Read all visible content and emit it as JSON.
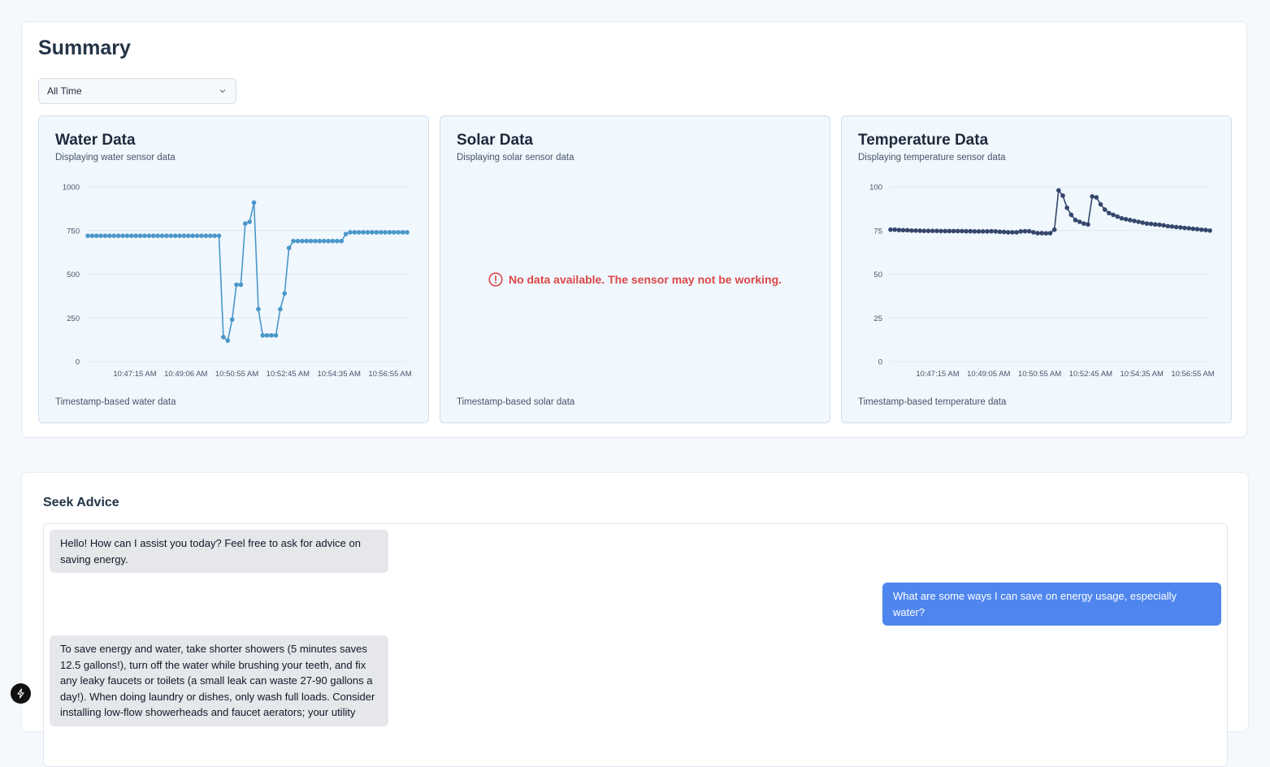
{
  "summary": {
    "title": "Summary",
    "range_select": {
      "value": "All Time"
    }
  },
  "panels": {
    "water": {
      "title": "Water Data",
      "description": "Displaying water sensor data",
      "footer": "Timestamp-based water data"
    },
    "solar": {
      "title": "Solar Data",
      "description": "Displaying solar sensor data",
      "footer": "Timestamp-based solar data",
      "no_data_message": "No data available. The sensor may not be working."
    },
    "temperature": {
      "title": "Temperature Data",
      "description": "Displaying temperature sensor data",
      "footer": "Timestamp-based temperature data"
    }
  },
  "chart_data": [
    {
      "type": "line",
      "ylim": [
        0,
        1000
      ],
      "y_ticks": [
        "0",
        "250",
        "500",
        "750",
        "1000"
      ],
      "x_tick_labels": [
        "10:47:15 AM",
        "10:49:06 AM",
        "10:50:55 AM",
        "10:52:45 AM",
        "10:54:35 AM",
        "10:56:55 AM"
      ],
      "grid": true,
      "color": "#4a97c9",
      "series": [
        {
          "values": [
            720,
            720,
            720,
            720,
            720,
            720,
            720,
            720,
            720,
            720,
            720,
            720,
            720,
            720,
            720,
            720,
            720,
            720,
            720,
            720,
            720,
            720,
            720,
            720,
            720,
            720,
            720,
            720,
            720,
            720,
            720,
            140,
            120,
            240,
            440,
            440,
            790,
            800,
            910,
            300,
            150,
            150,
            150,
            150,
            300,
            390,
            650,
            690,
            690,
            690,
            690,
            690,
            690,
            690,
            690,
            690,
            690,
            690,
            690,
            730,
            740,
            740,
            740,
            740,
            740,
            740,
            740,
            740,
            740,
            740,
            740,
            740,
            740,
            740
          ]
        }
      ]
    },
    {
      "type": "line",
      "ylim": [
        0,
        100
      ],
      "y_ticks": [
        "0",
        "25",
        "50",
        "75",
        "100"
      ],
      "x_tick_labels": [
        "10:47:15 AM",
        "10:49:05 AM",
        "10:50:55 AM",
        "10:52:45 AM",
        "10:54:35 AM",
        "10:56:55 AM"
      ],
      "grid": true,
      "color": "#34466b",
      "series": [
        {
          "values": [
            75.5,
            75.5,
            75.3,
            75.2,
            75.2,
            75.0,
            75.0,
            74.9,
            74.8,
            74.8,
            74.8,
            74.8,
            74.7,
            74.7,
            74.7,
            74.7,
            74.7,
            74.7,
            74.6,
            74.6,
            74.5,
            74.5,
            74.5,
            74.5,
            74.6,
            74.5,
            74.3,
            74.2,
            74.0,
            74.0,
            74.0,
            74.5,
            74.6,
            74.6,
            74.0,
            73.5,
            73.5,
            73.4,
            73.5,
            75.5,
            98.0,
            95.0,
            88.0,
            84.0,
            81.0,
            80.0,
            79.0,
            78.5,
            94.5,
            94.0,
            90.0,
            87.0,
            85.0,
            84.0,
            83.0,
            82.0,
            81.5,
            81.0,
            80.5,
            80.0,
            79.5,
            79.0,
            78.8,
            78.5,
            78.3,
            78.0,
            77.5,
            77.3,
            77.0,
            76.8,
            76.5,
            76.3,
            76.0,
            75.8,
            75.5,
            75.3,
            75.0
          ]
        }
      ]
    }
  ],
  "advice": {
    "title": "Seek Advice",
    "messages": [
      {
        "role": "bot",
        "text": "Hello! How can I assist you today? Feel free to ask for advice on saving energy."
      },
      {
        "role": "user",
        "text": "What are some ways I can save on energy usage, especially water?"
      },
      {
        "role": "bot",
        "text": "To save energy and water, take shorter showers (5 minutes saves 12.5 gallons!), turn off the water while brushing your teeth, and fix any leaky faucets or toilets (a small leak can waste 27-90 gallons a day!). When doing laundry or dishes, only wash full loads. Consider installing low-flow showerheads and faucet aerators; your utility"
      }
    ]
  },
  "colors": {
    "water_line": "#4a97c9",
    "temperature_line": "#34466b",
    "error": "#dc4747",
    "user_bubble": "#4f86ee",
    "bot_bubble": "#e5e7eb"
  },
  "icons": {
    "dropdown": "chevron-down-icon",
    "error": "alert-circle-icon",
    "fab": "lightning-bolt-icon"
  }
}
